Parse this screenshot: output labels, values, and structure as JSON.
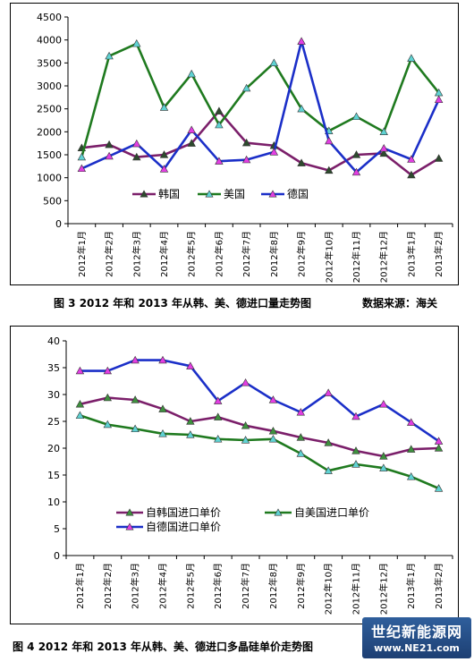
{
  "colors": {
    "korea": "#7b1f6a",
    "usa": "#1f7a1f",
    "germany": "#1b2fc8",
    "background": "#ffffff"
  },
  "captions": {
    "fig3": "图 3   2012 年和 2013 年从韩、美、德进口量走势图",
    "fig3_source": "数据来源：海关",
    "fig4": "图 4   2012 年和 2013 年从韩、美、德进口多晶硅单价走势图"
  },
  "logo": {
    "name": "世纪新能源网",
    "url": "www.NE21.com"
  },
  "chart_data": [
    {
      "type": "line",
      "categories": [
        "2012年1月",
        "2012年2月",
        "2012年3月",
        "2012年4月",
        "2012年5月",
        "2012年6月",
        "2012年7月",
        "2012年8月",
        "2012年9月",
        "2012年10月",
        "2012年11月",
        "2012年12月",
        "2013年1月",
        "2013年2月"
      ],
      "series": [
        {
          "name": "韩国",
          "color": "#7b1f6a",
          "marker": "triangle-dark",
          "values": [
            1650,
            1720,
            1450,
            1500,
            1750,
            2450,
            1760,
            1700,
            1320,
            1160,
            1500,
            1530,
            1060,
            1420
          ]
        },
        {
          "name": "美国",
          "color": "#1f7a1f",
          "marker": "triangle-cyan",
          "values": [
            1450,
            3650,
            3920,
            2530,
            3260,
            2150,
            2950,
            3500,
            2500,
            2020,
            2330,
            2000,
            3600,
            2850
          ]
        },
        {
          "name": "德国",
          "color": "#1b2fc8",
          "marker": "triangle-magenta",
          "values": [
            1200,
            1470,
            1740,
            1190,
            2040,
            1360,
            1390,
            1560,
            3970,
            1800,
            1120,
            1640,
            1400,
            2700
          ]
        }
      ],
      "yticks": [
        "0",
        "500",
        "1000",
        "1500",
        "2000",
        "2500",
        "3000",
        "3500",
        "4000",
        "4500"
      ],
      "ylim": [
        0,
        4500
      ],
      "legend": "bottom-center-inside",
      "grid": false
    },
    {
      "type": "line",
      "categories": [
        "2012年1月",
        "2012年2月",
        "2012年3月",
        "2012年4月",
        "2012年5月",
        "2012年6月",
        "2012年7月",
        "2012年8月",
        "2012年9月",
        "2012年10月",
        "2012年11月",
        "2012年12月",
        "2013年1月",
        "2013年2月"
      ],
      "series": [
        {
          "name": "自韩国进口单价",
          "color": "#7b1f6a",
          "marker": "triangle-green",
          "values": [
            28.2,
            29.4,
            29.0,
            27.3,
            25.0,
            25.8,
            24.2,
            23.2,
            22.0,
            21.0,
            19.5,
            18.5,
            19.8,
            20.0
          ]
        },
        {
          "name": "自美国进口单价",
          "color": "#1f7a1f",
          "marker": "triangle-cyan",
          "values": [
            26.1,
            24.4,
            23.6,
            22.7,
            22.5,
            21.7,
            21.5,
            21.7,
            19.0,
            15.8,
            17.0,
            16.3,
            14.7,
            12.5
          ]
        },
        {
          "name": "自德国进口单价",
          "color": "#1b2fc8",
          "marker": "triangle-magenta",
          "values": [
            34.4,
            34.4,
            36.4,
            36.4,
            35.3,
            28.8,
            32.2,
            29.0,
            26.7,
            30.3,
            25.9,
            28.2,
            24.8,
            21.3
          ]
        }
      ],
      "yticks": [
        "0",
        "5",
        "10",
        "15",
        "20",
        "25",
        "30",
        "35",
        "40"
      ],
      "ylim": [
        0,
        40
      ],
      "legend": "inside-middle",
      "grid": false
    }
  ]
}
